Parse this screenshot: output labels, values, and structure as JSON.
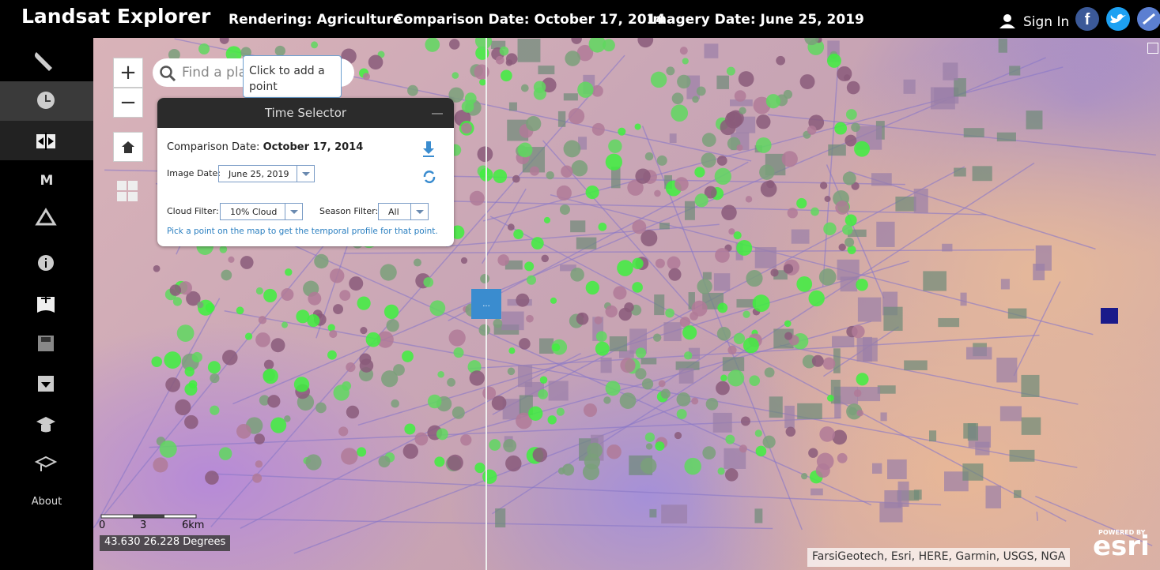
{
  "header": {
    "title": "Landsat Explorer",
    "rendering": "Rendering: Agriculture",
    "comparison": "Comparison Date: October 17, 2014",
    "imagery": "Imagery Date: June 25, 2019",
    "sign_in": "Sign In"
  },
  "sidebar": {
    "m_icon": "M",
    "about": "About"
  },
  "controls": {
    "zoom_in": "+",
    "zoom_out": "−",
    "search_placeholder": "Find a pla",
    "tooltip": "Click to add a point",
    "splitter": "..."
  },
  "time_selector": {
    "title": "Time Selector",
    "comparison_label": "Comparison Date:",
    "comparison_value": "October 17, 2014",
    "image_date_label": "Image Date:",
    "image_date_value": "June 25, 2019",
    "cloud_label": "Cloud Filter:",
    "cloud_value": "10% Cloud",
    "season_label": "Season Filter:",
    "season_value": "All",
    "hint": "Pick a point on the map to get the temporal profile for that point."
  },
  "map": {
    "scale": [
      "0",
      "3",
      "6km"
    ],
    "coordinates": "43.630 26.228 Degrees",
    "attribution": "FarsiGeotech, Esri, HERE, Garmin, USGS, NGA",
    "powered_by": "POWERED BY",
    "esri": "esri"
  }
}
